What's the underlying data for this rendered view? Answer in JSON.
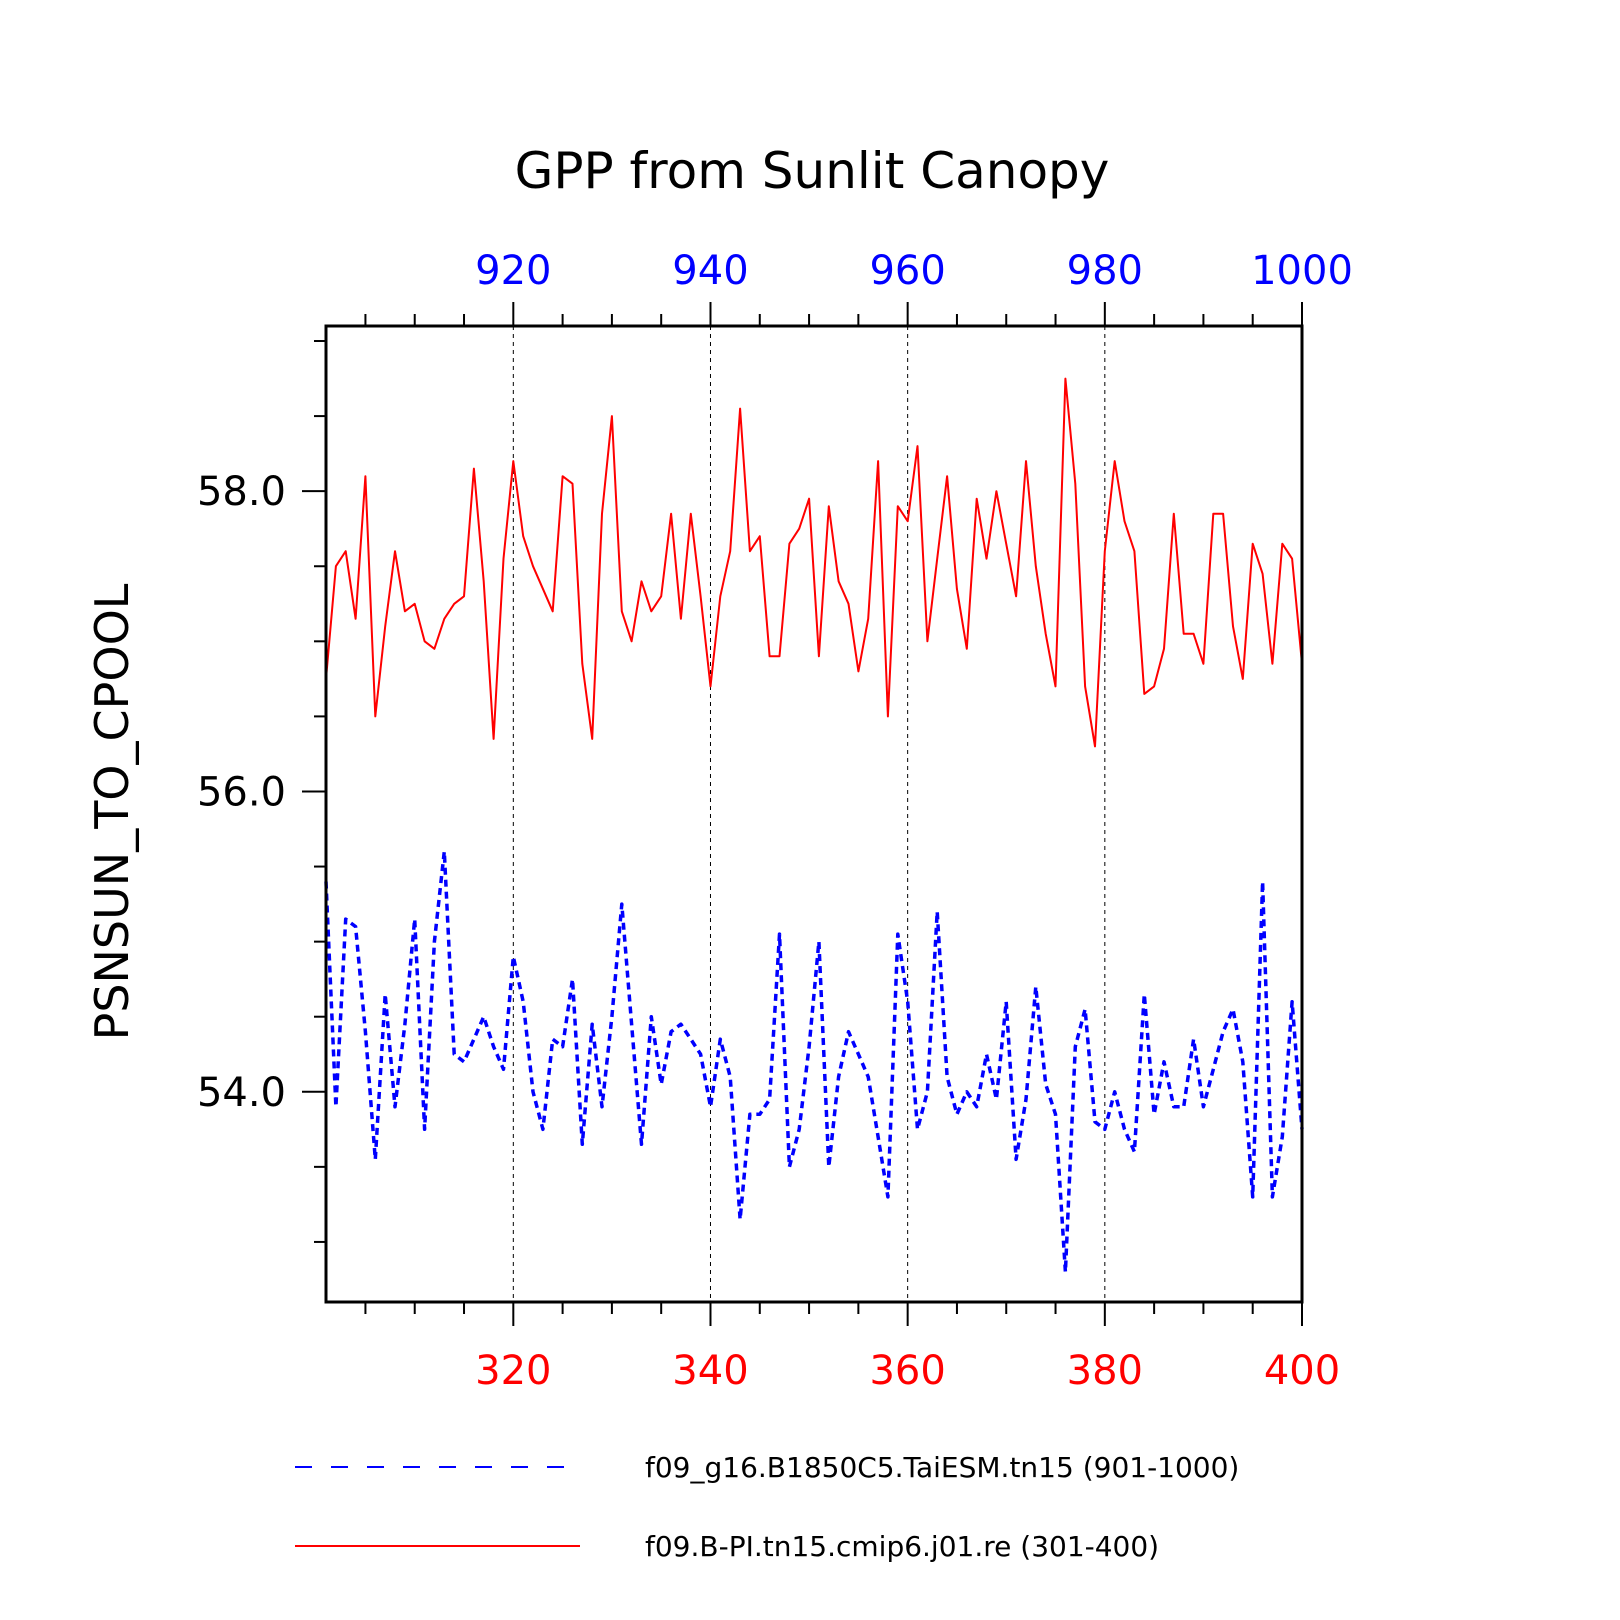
{
  "chart_data": {
    "type": "line",
    "title": "GPP from Sunlit Canopy",
    "ylabel": "PSNSUN_TO_CPOOL",
    "ylim": [
      52.6,
      59.1
    ],
    "y_ticks": [
      "54.0",
      "56.0",
      "58.0"
    ],
    "y_tick_values": [
      54.0,
      56.0,
      58.0
    ],
    "bottom_axis": {
      "range": [
        301,
        400
      ],
      "ticks": [
        320,
        340,
        360,
        380,
        400
      ],
      "tick_labels": [
        "320",
        "340",
        "360",
        "380",
        "400"
      ],
      "color": "#ff0000"
    },
    "top_axis": {
      "range": [
        901,
        1000
      ],
      "ticks": [
        920,
        940,
        960,
        980,
        1000
      ],
      "tick_labels": [
        "920",
        "940",
        "960",
        "980",
        "1000"
      ],
      "color": "#0000ff"
    },
    "grid": "vertical-dashed-at-major-ticks",
    "legend_placement": "bottom",
    "series": [
      {
        "name": "f09_g16.B1850C5.TaiESM.tn15 (901-1000)",
        "axis": "top",
        "color": "#0000ff",
        "style": "dashed",
        "x_start": 901,
        "values": [
          55.4,
          53.9,
          55.15,
          55.1,
          54.4,
          53.55,
          54.65,
          53.9,
          54.45,
          55.15,
          53.75,
          55.0,
          55.6,
          54.25,
          54.2,
          54.35,
          54.5,
          54.3,
          54.15,
          54.9,
          54.6,
          54.0,
          53.75,
          54.35,
          54.3,
          54.75,
          53.65,
          54.45,
          53.9,
          54.5,
          55.25,
          54.45,
          53.65,
          54.5,
          54.05,
          54.4,
          54.45,
          54.35,
          54.25,
          53.9,
          54.35,
          54.1,
          53.15,
          53.85,
          53.85,
          53.95,
          55.05,
          53.5,
          53.75,
          54.3,
          55.0,
          53.5,
          54.1,
          54.4,
          54.25,
          54.1,
          53.7,
          53.3,
          55.05,
          54.6,
          53.75,
          54.0,
          55.2,
          54.1,
          53.85,
          54.0,
          53.9,
          54.25,
          53.95,
          54.6,
          53.55,
          53.95,
          54.7,
          54.05,
          53.85,
          52.8,
          54.3,
          54.55,
          53.8,
          53.75,
          54.0,
          53.75,
          53.6,
          54.65,
          53.85,
          54.2,
          53.9,
          53.9,
          54.35,
          53.9,
          54.15,
          54.4,
          54.55,
          54.2,
          53.3,
          55.4,
          53.3,
          53.7,
          54.6,
          53.75
        ]
      },
      {
        "name": "f09.B-PI.tn15.cmip6.j01.re (301-400)",
        "axis": "bottom",
        "color": "#ff0000",
        "style": "solid",
        "x_start": 301,
        "values": [
          56.75,
          57.5,
          57.6,
          57.15,
          58.1,
          56.5,
          57.1,
          57.6,
          57.2,
          57.25,
          57.0,
          56.95,
          57.15,
          57.25,
          57.3,
          58.15,
          57.4,
          56.35,
          57.55,
          58.2,
          57.7,
          57.5,
          57.35,
          57.2,
          58.1,
          58.05,
          56.85,
          56.35,
          57.85,
          58.5,
          57.2,
          57.0,
          57.4,
          57.2,
          57.3,
          57.85,
          57.15,
          57.85,
          57.3,
          56.7,
          57.3,
          57.6,
          58.55,
          57.6,
          57.7,
          56.9,
          56.9,
          57.65,
          57.75,
          57.95,
          56.9,
          57.9,
          57.4,
          57.25,
          56.8,
          57.15,
          58.2,
          56.5,
          57.9,
          57.8,
          58.3,
          57.0,
          57.55,
          58.1,
          57.35,
          56.95,
          57.95,
          57.55,
          58.0,
          57.65,
          57.3,
          58.2,
          57.5,
          57.05,
          56.7,
          58.75,
          58.05,
          56.7,
          56.3,
          57.6,
          58.2,
          57.8,
          57.6,
          56.65,
          56.7,
          56.95,
          57.85,
          57.05,
          57.05,
          56.85,
          57.85,
          57.85,
          57.1,
          56.75,
          57.65,
          57.45,
          56.85,
          57.65,
          57.55,
          56.85
        ]
      }
    ]
  }
}
